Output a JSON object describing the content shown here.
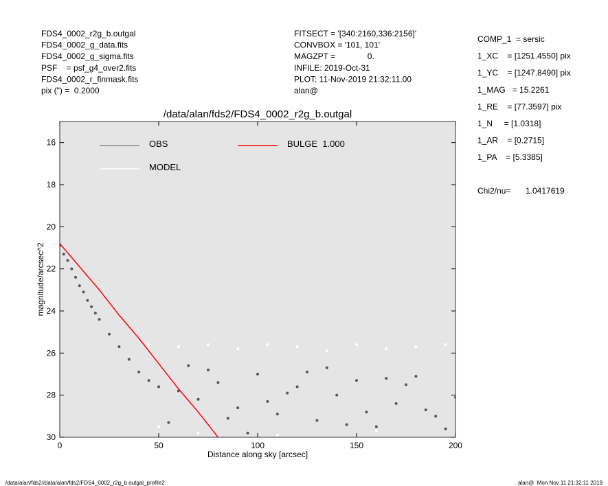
{
  "header": {
    "left": [
      "FDS4_0002_r2g_b.outgal",
      "FDS4_0002_g_data.fits",
      "FDS4_0002_g_sigma.fits",
      "PSF    = psf_g4_over2.fits",
      "FDS4_0002_r_finmask.fits",
      "pix (\") =  0.2000"
    ],
    "middle": [
      "FITSECT = '[340:2160,336:2156]'",
      "CONVBOX = '101, 101'",
      "MAGZPT =              0.",
      "INFILE: 2019-Oct-31",
      "PLOT: 11-Nov-2019 21:32:11.00",
      "alan@"
    ],
    "right": [
      "COMP_1  = sersic",
      "1_XC    = [1251.4550] pix",
      "1_YC    = [1247.8490] pix",
      "1_MAG   = 15.2261",
      "1_RE    = [77.3597] pix",
      "1_N     = [1.0318]",
      "1_AR    = [0.2715]",
      "1_PA    = [5.3385]"
    ],
    "chi2": {
      "label": "Chi2/nu=",
      "value": "1.0417619"
    }
  },
  "footer": {
    "left": "/data/alan/fds2//data/alan/fds2/FDS4_0002_r2g_b.outgal_profile2",
    "right": "alan@  Mon Nov 11 21:32:11 2019"
  },
  "chart_data": {
    "type": "scatter",
    "title": "/data/alan/fds2/FDS4_0002_r2g_b.outgal",
    "x_label": "Distance along sky [arcsec]",
    "y_label": "magnitude/arcsec^2",
    "xlim": [
      0,
      200
    ],
    "xticks": [
      0,
      50,
      100,
      150,
      200
    ],
    "ylim": [
      30,
      15
    ],
    "yticks": [
      16,
      18,
      20,
      22,
      24,
      26,
      28,
      30
    ],
    "background": "#e5e5e5",
    "series": [
      {
        "name": "OBS",
        "color": "#555555",
        "legend_color": "#888888",
        "style": "points",
        "x": [
          0,
          2,
          4,
          6,
          8,
          10,
          12,
          14,
          16,
          18,
          20,
          25,
          30,
          35,
          40,
          45,
          50,
          60,
          70,
          80,
          90,
          100,
          110,
          120,
          130,
          140,
          150,
          160,
          170,
          180,
          190,
          200,
          55,
          75,
          95,
          115,
          135,
          155,
          175,
          195,
          65,
          85,
          105,
          125,
          145,
          165,
          185
        ],
        "values": [
          20.9,
          21.3,
          21.6,
          22.0,
          22.4,
          22.8,
          23.1,
          23.5,
          23.8,
          24.1,
          24.4,
          25.1,
          25.7,
          26.3,
          26.9,
          27.3,
          27.6,
          27.8,
          28.2,
          27.4,
          28.6,
          27.0,
          28.9,
          27.6,
          29.2,
          28.0,
          27.3,
          29.5,
          28.4,
          27.1,
          29.0,
          28.1,
          29.3,
          26.8,
          29.8,
          27.9,
          26.7,
          28.8,
          27.5,
          29.6,
          26.6,
          29.1,
          28.3,
          26.9,
          29.4,
          27.2,
          28.7
        ]
      },
      {
        "name": "MODEL",
        "color": "#ffffff",
        "legend_color": "#ffffff",
        "style": "points",
        "x": [
          45,
          60,
          75,
          90,
          105,
          120,
          135,
          150,
          165,
          180,
          195,
          50,
          70,
          110,
          160
        ],
        "values": [
          25.6,
          25.7,
          25.6,
          25.8,
          25.6,
          25.7,
          25.9,
          25.6,
          25.8,
          25.7,
          25.6,
          29.5,
          29.8,
          29.9,
          29.7
        ]
      },
      {
        "name": "BULGE  1.000",
        "color": "#ff0000",
        "legend_color": "#ff0000",
        "style": "line",
        "x": [
          0,
          10,
          20,
          30,
          40,
          50,
          60,
          70,
          80
        ],
        "values": [
          20.8,
          21.9,
          23.0,
          24.2,
          25.3,
          26.5,
          27.7,
          28.8,
          30.0
        ]
      }
    ]
  }
}
